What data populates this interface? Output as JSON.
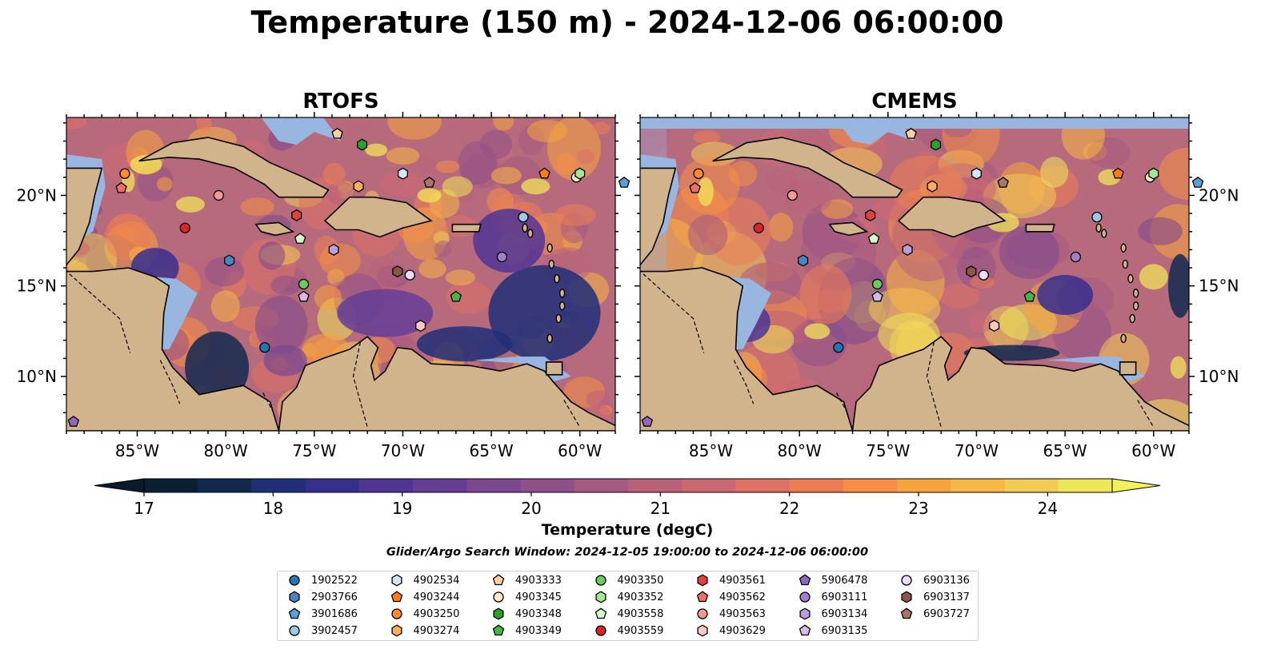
{
  "title": "Temperature (150 m) - 2024-12-06 06:00:00",
  "panels": [
    {
      "name": "RTOFS",
      "style": "rtofs"
    },
    {
      "name": "CMEMS",
      "style": "cmems"
    }
  ],
  "map_extent": {
    "lon": [
      -89,
      -58
    ],
    "lat": [
      7,
      24.3
    ]
  },
  "lon_ticks": [
    {
      "value": -85,
      "label": "85°W"
    },
    {
      "value": -80,
      "label": "80°W"
    },
    {
      "value": -75,
      "label": "75°W"
    },
    {
      "value": -70,
      "label": "70°W"
    },
    {
      "value": -65,
      "label": "65°W"
    },
    {
      "value": -60,
      "label": "60°W"
    }
  ],
  "lat_ticks": [
    {
      "value": 20,
      "label": "20°N"
    },
    {
      "value": 15,
      "label": "15°N"
    },
    {
      "value": 10,
      "label": "10°N"
    }
  ],
  "colorbar": {
    "label": "Temperature (degC)",
    "min": 16.5,
    "max": 24.7,
    "ticks": [
      {
        "value": 17,
        "label": "17"
      },
      {
        "value": 18,
        "label": "18"
      },
      {
        "value": 19,
        "label": "19"
      },
      {
        "value": 20,
        "label": "20"
      },
      {
        "value": 21,
        "label": "21"
      },
      {
        "value": 22,
        "label": "22"
      },
      {
        "value": 23,
        "label": "23"
      },
      {
        "value": 24,
        "label": "24"
      }
    ],
    "colors": [
      "#0b2032",
      "#12294f",
      "#1f2f78",
      "#372f8e",
      "#513595",
      "#653d95",
      "#7a4790",
      "#8f5089",
      "#a55a82",
      "#b9617a",
      "#cc6872",
      "#dd7164",
      "#ec7d53",
      "#f58f45",
      "#f8a43e",
      "#f7b744",
      "#f3cc56",
      "#eee65a"
    ],
    "over_color": "#f2f25a",
    "under_color": "#0a1c2c"
  },
  "colors": {
    "ocean_shallow": "#98b6e0",
    "land": "#d2b48c",
    "deep_cold": "#0b2032"
  },
  "search_window": "Glider/Argo Search Window: 2024-12-05 19:00:00 to 2024-12-06 06:00:00",
  "platforms": [
    {
      "id": "1902522",
      "marker": "circle",
      "color": "#1f77b4",
      "lon": -77.8,
      "lat": 11.6
    },
    {
      "id": "2903766",
      "marker": "hexagon",
      "color": "#4a85c1",
      "lon": -79.8,
      "lat": 16.4
    },
    {
      "id": "3901686",
      "marker": "pentagon",
      "color": "#5aa0d6",
      "lon": -57.5,
      "lat": 20.7
    },
    {
      "id": "3902457",
      "marker": "circle",
      "color": "#9ec7ea",
      "lon": -63.2,
      "lat": 18.8
    },
    {
      "id": "4902534",
      "marker": "hexagon",
      "color": "#d4e5f6",
      "lon": -70.0,
      "lat": 21.2
    },
    {
      "id": "4903244",
      "marker": "pentagon",
      "color": "#ff7f0e",
      "lon": -62.0,
      "lat": 21.2
    },
    {
      "id": "4903250",
      "marker": "circle",
      "color": "#ff8c2a",
      "lon": -85.7,
      "lat": 21.2
    },
    {
      "id": "4903274",
      "marker": "hexagon",
      "color": "#ffac62",
      "lon": -72.5,
      "lat": 20.5
    },
    {
      "id": "4903333",
      "marker": "pentagon",
      "color": "#ffcf9e",
      "lon": -73.7,
      "lat": 23.4
    },
    {
      "id": "4903345",
      "marker": "circle",
      "color": "#ffe7cc",
      "lon": -60.2,
      "lat": 21.0
    },
    {
      "id": "4903348",
      "marker": "hexagon",
      "color": "#2ca02c",
      "lon": -72.3,
      "lat": 22.8
    },
    {
      "id": "4903349",
      "marker": "pentagon",
      "color": "#46b546",
      "lon": -67.0,
      "lat": 14.4
    },
    {
      "id": "4903350",
      "marker": "circle",
      "color": "#6ccc5c",
      "lon": -75.6,
      "lat": 15.1
    },
    {
      "id": "4903352",
      "marker": "hexagon",
      "color": "#a3e695",
      "lon": -60.0,
      "lat": 21.2
    },
    {
      "id": "4903558",
      "marker": "pentagon",
      "color": "#d5f7ce",
      "lon": -75.8,
      "lat": 17.6
    },
    {
      "id": "4903559",
      "marker": "circle",
      "color": "#d62728",
      "lon": -82.3,
      "lat": 18.2
    },
    {
      "id": "4903561",
      "marker": "hexagon",
      "color": "#e0413c",
      "lon": -76.0,
      "lat": 18.9
    },
    {
      "id": "4903562",
      "marker": "pentagon",
      "color": "#ea6e6a",
      "lon": -85.9,
      "lat": 20.4
    },
    {
      "id": "4903563",
      "marker": "circle",
      "color": "#f29a97",
      "lon": -80.4,
      "lat": 20.0
    },
    {
      "id": "4903629",
      "marker": "hexagon",
      "color": "#fbc6c4",
      "lon": -69.0,
      "lat": 12.8
    },
    {
      "id": "5906478",
      "marker": "pentagon",
      "color": "#9467bd",
      "lon": -88.6,
      "lat": 7.5
    },
    {
      "id": "6903111",
      "marker": "circle",
      "color": "#a27fcc",
      "lon": -64.4,
      "lat": 16.6
    },
    {
      "id": "6903134",
      "marker": "hexagon",
      "color": "#bb9cdc",
      "lon": -73.9,
      "lat": 17.0
    },
    {
      "id": "6903135",
      "marker": "pentagon",
      "color": "#d4baeb",
      "lon": -75.6,
      "lat": 14.4
    },
    {
      "id": "6903136",
      "marker": "circle",
      "color": "#ecdcf6",
      "lon": -69.6,
      "lat": 15.6
    },
    {
      "id": "6903137",
      "marker": "hexagon",
      "color": "#8c564b",
      "lon": -70.3,
      "lat": 15.8
    },
    {
      "id": "6903727",
      "marker": "pentagon",
      "color": "#a8756a",
      "lon": -68.5,
      "lat": 20.7
    }
  ]
}
